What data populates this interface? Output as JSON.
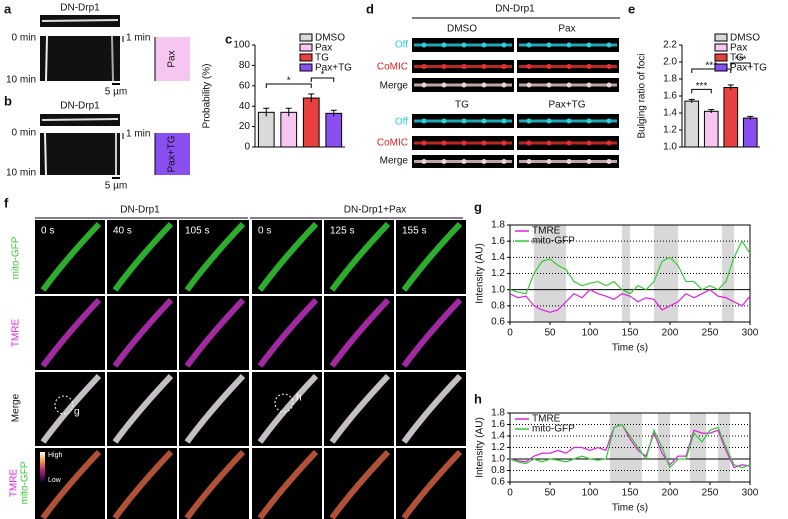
{
  "panels": {
    "a": {
      "label": "a",
      "title": "DN-Drp1",
      "start": "0 min",
      "end": "10 min",
      "time_scale": "1 min",
      "scale_bar": "5 µm",
      "treatment": "Pax"
    },
    "b": {
      "label": "b",
      "title": "DN-Drp1",
      "start": "0 min",
      "end": "10 min",
      "time_scale": "1 min",
      "scale_bar": "5 µm",
      "treatment": "Pax+TG"
    },
    "d": {
      "label": "d",
      "title": "DN-Drp1",
      "conditions": [
        "DMSO",
        "Pax",
        "TG",
        "Pax+TG"
      ],
      "channels": [
        "Off",
        "CoMIC",
        "Merge"
      ]
    },
    "f": {
      "label": "f",
      "groups": [
        "DN-Drp1",
        "DN-Drp1+Pax"
      ],
      "times": [
        "0 s",
        "40 s",
        "105 s",
        "0 s",
        "125 s",
        "155 s"
      ],
      "rows": [
        "mito-GFP",
        "TMRE",
        "Merge"
      ],
      "overlay_row": [
        "TMRE",
        "mito-GFP"
      ],
      "colorbar": [
        "High",
        "Low"
      ],
      "roi": [
        "g",
        "h"
      ]
    }
  },
  "chart_data": [
    {
      "panel": "c",
      "type": "bar",
      "ylabel": "Probability (%)",
      "categories": [
        "DMSO",
        "Pax",
        "TG",
        "Pax+TG"
      ],
      "values": [
        34,
        34,
        48,
        33
      ],
      "errors": [
        4,
        4,
        4,
        3
      ],
      "colors": [
        "#d9d9d9",
        "#f7c6f0",
        "#e8403f",
        "#8a4ff0"
      ],
      "ylim": [
        0,
        100
      ],
      "yticks": [
        0,
        20,
        40,
        60,
        80,
        100
      ],
      "legend": "upper right",
      "annotations": [
        {
          "text": "*",
          "from": 0,
          "to": 2
        },
        {
          "text": "*",
          "from": 2,
          "to": 3
        }
      ]
    },
    {
      "panel": "e",
      "type": "bar",
      "ylabel": "Bulging ratio of foci",
      "categories": [
        "DMSO",
        "Pax",
        "TG",
        "Pax+TG"
      ],
      "values": [
        1.54,
        1.42,
        1.7,
        1.34
      ],
      "errors": [
        0.02,
        0.02,
        0.03,
        0.02
      ],
      "colors": [
        "#d9d9d9",
        "#f7c6f0",
        "#e8403f",
        "#8a4ff0"
      ],
      "ylim": [
        1.0,
        2.2
      ],
      "yticks": [
        {
          "value": 1,
          "label": "1.0"
        },
        1.2,
        1.4,
        1.6,
        1.8,
        {
          "value": 2,
          "label": "2.0"
        },
        2.2
      ],
      "legend": "upper right",
      "annotations": [
        {
          "text": "***",
          "from": 0,
          "to": 1
        },
        {
          "text": "***",
          "from": 0,
          "to": 2
        },
        {
          "text": "***",
          "from": 2,
          "to": 3
        }
      ]
    },
    {
      "panel": "g",
      "type": "line",
      "xlabel": "Time (s)",
      "ylabel": "Intensity (AU)",
      "x": [
        0,
        10,
        20,
        30,
        40,
        50,
        60,
        70,
        80,
        90,
        100,
        110,
        120,
        130,
        140,
        150,
        160,
        170,
        180,
        190,
        200,
        210,
        220,
        230,
        240,
        250,
        260,
        270,
        280,
        290,
        300
      ],
      "series": [
        {
          "name": "TMRE",
          "color": "#e020e0",
          "values": [
            0.95,
            0.9,
            0.92,
            0.8,
            0.75,
            0.72,
            0.75,
            0.85,
            0.95,
            0.9,
            1.0,
            0.95,
            0.92,
            0.88,
            0.95,
            0.92,
            0.85,
            0.9,
            0.88,
            0.75,
            0.8,
            0.85,
            0.95,
            0.9,
            0.95,
            1.0,
            0.92,
            0.9,
            0.85,
            0.8,
            0.92
          ]
        },
        {
          "name": "mito-GFP",
          "color": "#33cc33",
          "values": [
            1.0,
            0.97,
            0.95,
            1.2,
            1.35,
            1.38,
            1.3,
            1.25,
            1.1,
            1.05,
            1.08,
            1.1,
            1.05,
            1.1,
            1.0,
            0.95,
            1.05,
            1.0,
            1.1,
            1.35,
            1.4,
            1.3,
            1.1,
            1.1,
            1.0,
            1.05,
            1.0,
            1.1,
            1.4,
            1.6,
            1.45
          ]
        }
      ],
      "shaded": [
        [
          30,
          70
        ],
        [
          140,
          150
        ],
        [
          180,
          210
        ],
        [
          265,
          280
        ]
      ],
      "hline": 1,
      "grid": "dotted",
      "xlim": [
        0,
        300
      ],
      "xticks": [
        0,
        50,
        100,
        150,
        200,
        250,
        300
      ],
      "ylim": [
        0.6,
        1.8
      ],
      "yticks": [
        0.6,
        0.8,
        {
          "value": 1,
          "label": "1.0"
        },
        1.2,
        1.4,
        1.6,
        1.8
      ],
      "legend": "upper left"
    },
    {
      "panel": "h",
      "type": "line",
      "xlabel": "Time (s)",
      "ylabel": "Intensity (AU)",
      "x": [
        0,
        10,
        20,
        30,
        40,
        50,
        60,
        70,
        80,
        90,
        100,
        110,
        120,
        130,
        140,
        150,
        160,
        170,
        180,
        190,
        200,
        210,
        220,
        230,
        240,
        250,
        260,
        270,
        280,
        290,
        300
      ],
      "series": [
        {
          "name": "TMRE",
          "color": "#e020e0",
          "values": [
            1.0,
            0.97,
            0.95,
            1.05,
            1.1,
            1.1,
            1.15,
            1.1,
            1.2,
            1.2,
            1.15,
            1.2,
            1.15,
            1.55,
            1.6,
            1.35,
            1.15,
            1.05,
            1.45,
            1.1,
            0.9,
            1.05,
            1.05,
            1.5,
            1.45,
            1.45,
            1.5,
            1.15,
            0.85,
            0.9,
            0.88
          ]
        },
        {
          "name": "mito-GFP",
          "color": "#33cc33",
          "values": [
            1.0,
            0.95,
            0.92,
            1.0,
            0.95,
            1.0,
            0.98,
            0.95,
            1.0,
            1.05,
            1.0,
            0.98,
            1.0,
            1.55,
            1.6,
            1.4,
            1.2,
            1.0,
            1.5,
            1.2,
            0.85,
            1.0,
            1.0,
            1.45,
            1.3,
            1.5,
            1.55,
            1.2,
            0.9,
            0.85,
            0.9
          ]
        }
      ],
      "shaded": [
        [
          125,
          165
        ],
        [
          185,
          200
        ],
        [
          225,
          245
        ],
        [
          260,
          275
        ]
      ],
      "hline": 1,
      "grid": "dotted",
      "xlim": [
        0,
        300
      ],
      "xticks": [
        0,
        50,
        100,
        150,
        200,
        250,
        300
      ],
      "ylim": [
        0.6,
        1.8
      ],
      "yticks": [
        0.6,
        0.8,
        {
          "value": 1,
          "label": "1.0"
        },
        1.2,
        1.4,
        1.6,
        1.8
      ],
      "legend": "upper left"
    }
  ]
}
